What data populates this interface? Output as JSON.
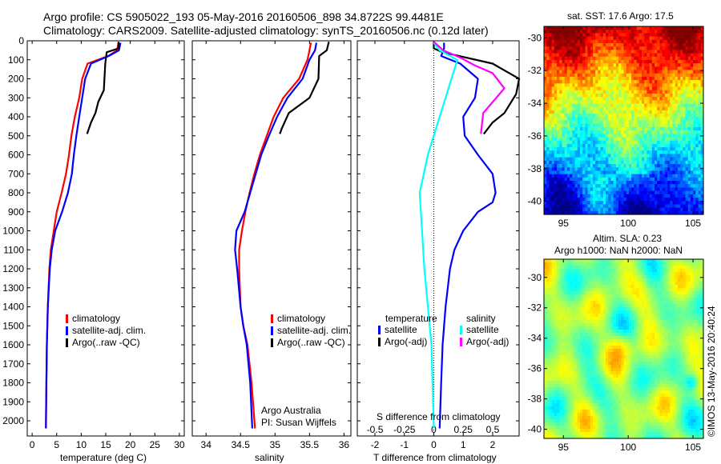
{
  "header": {
    "line1": "Argo profile: CS 5905022_193 05-May-2016 20160506_898 34.8722S 99.4481E",
    "line2": "Climatology: CARS2009. Satellite-adjusted climatology: synTS_20160506.nc (0.12d later)"
  },
  "colors": {
    "climatology": "#ff0000",
    "satellite": "#0000ff",
    "argo": "#000000",
    "satellite_s": "#00ffff",
    "argo_s": "#ff00ff"
  },
  "chart_data": [
    {
      "type": "line",
      "xlabel": "temperature (deg C)",
      "ylabel": "",
      "xlim": [
        -1,
        31
      ],
      "ylim": [
        2080,
        0
      ],
      "y_reversed": true,
      "xticks": [
        0,
        5,
        10,
        15,
        20,
        25,
        30
      ],
      "yticks": [
        0,
        100,
        200,
        300,
        400,
        500,
        600,
        700,
        800,
        900,
        1000,
        1100,
        1200,
        1300,
        1400,
        1500,
        1600,
        1700,
        1800,
        1900,
        2000
      ],
      "legend_position": "lower-right",
      "series": [
        {
          "name": "climatology",
          "color": "#ff0000",
          "x": [
            17.6,
            17.3,
            15.5,
            11.3,
            10.2,
            9.6,
            8.7,
            8.0,
            7.5,
            6.9,
            6.0,
            5.0,
            4.4,
            3.8,
            3.5,
            3.2,
            3.0,
            2.9,
            2.8
          ],
          "y": [
            10,
            50,
            80,
            120,
            200,
            300,
            400,
            500,
            600,
            700,
            800,
            900,
            1000,
            1100,
            1200,
            1400,
            1600,
            1800,
            2040
          ]
        },
        {
          "name": "satellite-adj. clim.",
          "color": "#0000ff",
          "x": [
            18.0,
            17.7,
            15.6,
            12.0,
            10.8,
            10.2,
            9.6,
            9.0,
            8.5,
            8.1,
            7.3,
            6.1,
            4.7,
            4.0,
            3.6,
            3.2,
            3.0,
            2.9,
            2.8
          ],
          "y": [
            10,
            50,
            80,
            120,
            200,
            300,
            400,
            500,
            600,
            700,
            800,
            900,
            1000,
            1100,
            1200,
            1400,
            1600,
            1800,
            2040
          ]
        },
        {
          "name": "Argo(..raw -QC)",
          "color": "#000000",
          "x": [
            17.6,
            17.6,
            15.2,
            14.9,
            14.6,
            13.5,
            12.9,
            12.0,
            11.2
          ],
          "y": [
            5,
            40,
            60,
            120,
            260,
            320,
            380,
            430,
            490
          ]
        }
      ],
      "annotations": []
    },
    {
      "type": "line",
      "xlabel": "salinity",
      "xlim": [
        33.8,
        36.1
      ],
      "ylim": [
        2080,
        0
      ],
      "y_reversed": true,
      "xticks": [
        34,
        34.5,
        35,
        35.5,
        36
      ],
      "legend_position": "lower-right",
      "series": [
        {
          "name": "climatology",
          "color": "#ff0000",
          "x": [
            35.52,
            35.5,
            35.47,
            35.35,
            35.12,
            34.98,
            34.88,
            34.78,
            34.7,
            34.63,
            34.57,
            34.52,
            34.48,
            34.48,
            34.5,
            34.54,
            34.6,
            34.66,
            34.71
          ],
          "y": [
            10,
            50,
            100,
            200,
            300,
            400,
            500,
            600,
            700,
            800,
            900,
            1000,
            1100,
            1200,
            1400,
            1500,
            1600,
            1800,
            2040
          ]
        },
        {
          "name": "satellite-adj. clim.",
          "color": "#0000ff",
          "x": [
            35.6,
            35.58,
            35.5,
            35.4,
            35.18,
            35.03,
            34.91,
            34.8,
            34.72,
            34.64,
            34.56,
            34.44,
            34.42,
            34.45,
            34.5,
            34.54,
            34.59,
            34.64,
            34.67
          ],
          "y": [
            10,
            50,
            100,
            200,
            300,
            400,
            500,
            600,
            700,
            800,
            900,
            1000,
            1100,
            1200,
            1400,
            1500,
            1600,
            1800,
            2040
          ]
        },
        {
          "name": "Argo(..raw -QC)",
          "color": "#000000",
          "x": [
            35.78,
            35.75,
            35.64,
            35.63,
            35.5,
            35.2,
            35.1,
            35.07
          ],
          "y": [
            5,
            50,
            80,
            200,
            300,
            380,
            460,
            490
          ]
        }
      ],
      "annotations": [
        "Argo Australia",
        "PI: Susan Wijffels"
      ]
    },
    {
      "type": "line",
      "xlabel": "T difference from climatology",
      "xlabel_top": "S difference from climatology",
      "xlim": [
        -2.6,
        2.9
      ],
      "ylim": [
        2080,
        0
      ],
      "y_reversed": true,
      "xticks": [
        -2,
        -1,
        0,
        1,
        2
      ],
      "xticks_top": [
        -0.5,
        -0.25,
        0,
        0.25,
        0.5
      ],
      "legend_titles": [
        "temperature",
        "salinity"
      ],
      "series": [
        {
          "name": "satellite",
          "group": "temperature",
          "color": "#0000ff",
          "x": [
            0.35,
            0.35,
            0.25,
            0.9,
            1.5,
            1.4,
            1.0,
            1.05,
            1.5,
            2.0,
            2.1,
            2.0,
            1.5,
            1.0,
            0.7,
            0.55,
            0.4,
            0.3,
            0.25,
            0.2
          ],
          "y": [
            10,
            40,
            80,
            120,
            200,
            300,
            400,
            500,
            600,
            700,
            800,
            850,
            900,
            1000,
            1100,
            1200,
            1400,
            1600,
            1800,
            2040
          ]
        },
        {
          "name": "Argo(-adj)",
          "group": "temperature",
          "color": "#000000",
          "x": [
            0.0,
            0.0,
            0.3,
            2.0,
            2.9,
            2.8,
            2.4,
            2.0,
            1.7
          ],
          "y": [
            5,
            40,
            60,
            120,
            200,
            280,
            380,
            430,
            490
          ]
        },
        {
          "name": "satellite",
          "group": "salinity",
          "color": "#00ffff",
          "x": [
            0.0,
            0.05,
            0.2,
            0.15,
            0.1,
            0.05,
            -0.05,
            -0.12,
            -0.08,
            -0.02,
            0.0
          ],
          "y": [
            10,
            50,
            100,
            200,
            300,
            400,
            600,
            800,
            1200,
            1600,
            2040
          ]
        },
        {
          "name": "Argo(-adj)",
          "group": "salinity",
          "color": "#ff00ff",
          "x": [
            0.0,
            0.08,
            0.23,
            0.35,
            0.5,
            0.6,
            0.42,
            0.4
          ],
          "y": [
            5,
            50,
            90,
            130,
            170,
            250,
            380,
            490
          ]
        }
      ]
    },
    {
      "type": "heatmap",
      "title": "sat. SST: 17.6  Argo: 17.5",
      "xlim": [
        93.5,
        105.8
      ],
      "ylim": [
        -40.8,
        -29.3
      ],
      "xticks": [
        95,
        100,
        105
      ],
      "yticks": [
        -30,
        -32,
        -34,
        -36,
        -38,
        -40
      ]
    },
    {
      "type": "heatmap",
      "title_lines": [
        "Altim. SLA: 0.23",
        "Argo h1000: NaN h2000: NaN"
      ],
      "xlim": [
        93.5,
        105.8
      ],
      "ylim": [
        -40.6,
        -28.8
      ],
      "xticks": [
        95,
        100,
        105
      ],
      "yticks": [
        -30,
        -32,
        -34,
        -36,
        -38,
        -40
      ]
    }
  ],
  "side_label": "©IMOS 13-May-2016 20:40:24"
}
